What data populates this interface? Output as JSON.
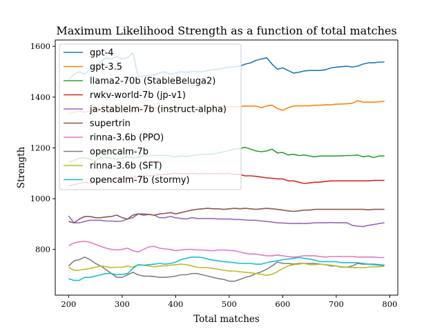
{
  "chart_data": {
    "type": "line",
    "title": "Maximum Likelihood Strength as a function of total matches",
    "xlabel": "Total matches",
    "ylabel": "Strength",
    "xlim": [
      175,
      815
    ],
    "ylim": [
      620,
      1625
    ],
    "xticks": [
      200,
      300,
      400,
      500,
      600,
      700,
      800
    ],
    "yticks": [
      800,
      1000,
      1200,
      1400,
      1600
    ],
    "grid": false,
    "legend_position": "top-left",
    "x": [
      200,
      210,
      220,
      230,
      240,
      250,
      260,
      270,
      280,
      290,
      300,
      310,
      320,
      330,
      340,
      350,
      360,
      370,
      380,
      390,
      400,
      410,
      420,
      430,
      440,
      450,
      460,
      470,
      480,
      490,
      500,
      510,
      520,
      530,
      540,
      550,
      560,
      570,
      580,
      590,
      600,
      610,
      620,
      630,
      640,
      650,
      660,
      670,
      680,
      690,
      700,
      710,
      720,
      730,
      740,
      750,
      760,
      770,
      780,
      790
    ],
    "series": [
      {
        "name": "gpt-4",
        "color": "#1f77b4",
        "values": [
          1470,
          1490,
          1500,
          1490,
          1510,
          1520,
          1540,
          1555,
          1550,
          1560,
          1550,
          1555,
          1575,
          1480,
          1482,
          1485,
          1488,
          1495,
          1500,
          1490,
          1495,
          1500,
          1498,
          1500,
          1500,
          1500,
          1505,
          1508,
          1510,
          1515,
          1518,
          1520,
          1522,
          1530,
          1535,
          1545,
          1550,
          1555,
          1530,
          1510,
          1515,
          1505,
          1495,
          1498,
          1503,
          1505,
          1505,
          1505,
          1508,
          1515,
          1518,
          1520,
          1522,
          1518,
          1522,
          1530,
          1535,
          1535,
          1538,
          1538
        ]
      },
      {
        "name": "gpt-3.5",
        "color": "#ff7f0e",
        "values": [
          1335,
          1340,
          1345,
          1340,
          1345,
          1350,
          1355,
          1360,
          1350,
          1345,
          1340,
          1350,
          1345,
          1350,
          1352,
          1355,
          1356,
          1357,
          1358,
          1356,
          1358,
          1360,
          1360,
          1359,
          1360,
          1361,
          1360,
          1361,
          1362,
          1362,
          1363,
          1362,
          1363,
          1365,
          1364,
          1365,
          1358,
          1365,
          1368,
          1355,
          1348,
          1358,
          1365,
          1366,
          1366,
          1366,
          1368,
          1368,
          1370,
          1370,
          1372,
          1373,
          1374,
          1376,
          1386,
          1380,
          1380,
          1380,
          1382,
          1383
        ]
      },
      {
        "name": "llama2-70b (StableBeluga2)",
        "color": "#2ca02c",
        "values": [
          1145,
          1150,
          1160,
          1160,
          1155,
          1150,
          1160,
          1160,
          1160,
          1155,
          1160,
          1165,
          1160,
          1165,
          1168,
          1168,
          1170,
          1170,
          1170,
          1168,
          1165,
          1168,
          1166,
          1170,
          1172,
          1175,
          1175,
          1176,
          1180,
          1185,
          1190,
          1195,
          1198,
          1202,
          1195,
          1188,
          1185,
          1188,
          1195,
          1180,
          1182,
          1172,
          1175,
          1170,
          1172,
          1168,
          1165,
          1168,
          1168,
          1168,
          1168,
          1169,
          1170,
          1170,
          1172,
          1165,
          1168,
          1162,
          1168,
          1168
        ]
      },
      {
        "name": "rwkv-world-7b (jp-v1)",
        "color": "#d62728",
        "values": [
          1050,
          1055,
          1060,
          1065,
          1060,
          1065,
          1070,
          1075,
          1075,
          1080,
          1080,
          1082,
          1085,
          1085,
          1088,
          1090,
          1092,
          1095,
          1095,
          1098,
          1100,
          1098,
          1098,
          1100,
          1098,
          1098,
          1100,
          1098,
          1100,
          1098,
          1100,
          1095,
          1095,
          1090,
          1090,
          1088,
          1085,
          1082,
          1080,
          1078,
          1078,
          1070,
          1070,
          1065,
          1060,
          1062,
          1065,
          1065,
          1068,
          1070,
          1070,
          1070,
          1070,
          1070,
          1070,
          1070,
          1070,
          1072,
          1072,
          1072
        ]
      },
      {
        "name": "ja-stablelm-7b (instruct-alpha)",
        "color": "#9467bd",
        "values": [
          932,
          905,
          905,
          910,
          915,
          915,
          915,
          912,
          912,
          910,
          912,
          920,
          925,
          940,
          940,
          938,
          935,
          925,
          925,
          930,
          925,
          922,
          920,
          925,
          922,
          922,
          922,
          922,
          920,
          920,
          920,
          918,
          918,
          916,
          915,
          915,
          912,
          910,
          908,
          905,
          904,
          903,
          902,
          903,
          902,
          903,
          905,
          905,
          905,
          906,
          905,
          905,
          905,
          895,
          892,
          890,
          895,
          898,
          902,
          905
        ]
      },
      {
        "name": "supertrin",
        "color": "#8c564b",
        "values": [
          910,
          905,
          920,
          930,
          930,
          925,
          925,
          928,
          930,
          935,
          925,
          920,
          935,
          940,
          935,
          938,
          935,
          940,
          942,
          945,
          940,
          945,
          950,
          955,
          958,
          960,
          962,
          960,
          960,
          958,
          960,
          962,
          960,
          962,
          960,
          958,
          960,
          962,
          960,
          958,
          955,
          952,
          950,
          952,
          955,
          955,
          958,
          958,
          958,
          958,
          958,
          958,
          958,
          958,
          958,
          958,
          956,
          958,
          958,
          958
        ]
      },
      {
        "name": "rinna-3.6b (PPO)",
        "color": "#e377c2",
        "values": [
          815,
          825,
          830,
          832,
          828,
          820,
          812,
          805,
          800,
          798,
          800,
          805,
          795,
          790,
          800,
          810,
          812,
          805,
          802,
          800,
          795,
          798,
          800,
          800,
          798,
          798,
          796,
          795,
          798,
          798,
          796,
          795,
          790,
          785,
          782,
          782,
          778,
          775,
          775,
          778,
          775,
          772,
          770,
          772,
          775,
          775,
          775,
          772,
          770,
          772,
          772,
          772,
          772,
          772,
          770,
          770,
          770,
          770,
          768,
          768
        ]
      },
      {
        "name": "opencalm-7b",
        "color": "#7f7f7f",
        "values": [
          735,
          755,
          760,
          770,
          760,
          745,
          735,
          720,
          705,
          690,
          690,
          700,
          710,
          700,
          695,
          695,
          693,
          690,
          690,
          692,
          695,
          700,
          700,
          705,
          705,
          700,
          695,
          690,
          685,
          682,
          675,
          675,
          682,
          690,
          695,
          705,
          712,
          722,
          735,
          750,
          745,
          745,
          742,
          745,
          745,
          745,
          745,
          742,
          740,
          735,
          735,
          730,
          730,
          735,
          745,
          742,
          742,
          742,
          740,
          738
        ]
      },
      {
        "name": "rinna-3.6b (SFT)",
        "color": "#bcbd22",
        "values": [
          730,
          718,
          718,
          722,
          725,
          730,
          735,
          732,
          728,
          730,
          730,
          735,
          730,
          740,
          738,
          735,
          732,
          735,
          735,
          738,
          740,
          742,
          740,
          735,
          730,
          728,
          728,
          725,
          722,
          718,
          715,
          715,
          712,
          710,
          708,
          705,
          702,
          698,
          702,
          712,
          725,
          735,
          740,
          742,
          745,
          740,
          740,
          742,
          740,
          738,
          735,
          732,
          730,
          728,
          728,
          728,
          730,
          732,
          732,
          734
        ]
      },
      {
        "name": "opencalm-7b (stormy)",
        "color": "#17becf",
        "values": [
          685,
          678,
          678,
          690,
          690,
          695,
          700,
          705,
          705,
          700,
          702,
          705,
          725,
          740,
          738,
          740,
          742,
          745,
          742,
          745,
          750,
          760,
          765,
          770,
          770,
          768,
          762,
          758,
          755,
          752,
          750,
          748,
          745,
          745,
          745,
          742,
          742,
          748,
          752,
          755,
          760,
          762,
          765,
          768,
          765,
          762,
          758,
          752,
          752,
          752,
          752,
          748,
          748,
          748,
          748,
          745,
          742,
          740,
          738,
          736
        ]
      }
    ]
  }
}
